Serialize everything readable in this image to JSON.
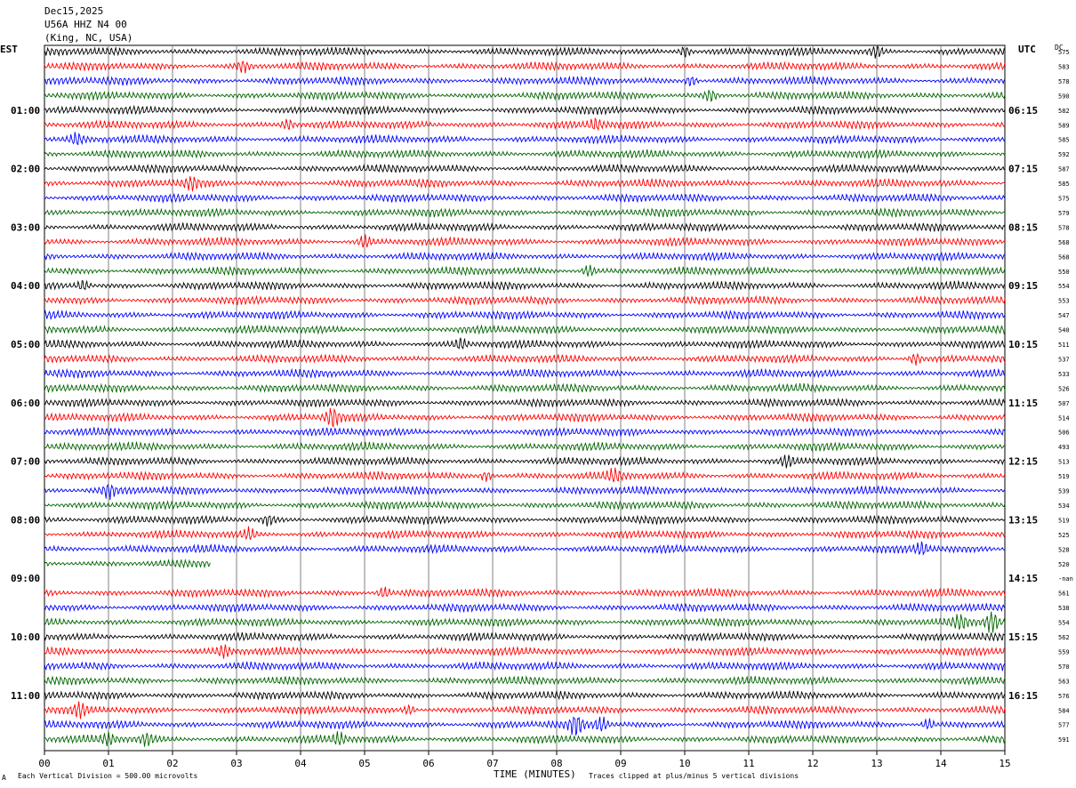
{
  "header": {
    "line1": "Dec15,2025",
    "line2": "U56A HHZ N4 00",
    "line3": "(King, NC, USA)"
  },
  "left_tz": "EST",
  "right_tz": "UTC",
  "dc_label": "DC",
  "footer": {
    "left": "Each Vertical Division =  500.00 microvolts",
    "center": "TIME (MINUTES)",
    "right": "Traces clipped at plus/minus 5 vertical divisions",
    "mark": "A"
  },
  "colors": {
    "black": "#000000",
    "red": "#ff0000",
    "blue": "#0000ff",
    "green": "#006400",
    "grid": "#808080"
  },
  "chart_data": {
    "type": "line",
    "title": "",
    "xlabel": "TIME (MINUTES)",
    "ylabel": "",
    "xlim": [
      0,
      15
    ],
    "x_ticks": [
      "00",
      "01",
      "02",
      "03",
      "04",
      "05",
      "06",
      "07",
      "08",
      "09",
      "10",
      "11",
      "12",
      "13",
      "14",
      "15"
    ],
    "trace_color_cycle": [
      "black",
      "red",
      "blue",
      "green"
    ],
    "left_time_labels": [
      {
        "row": 4,
        "label": "01:00"
      },
      {
        "row": 8,
        "label": "02:00"
      },
      {
        "row": 12,
        "label": "03:00"
      },
      {
        "row": 16,
        "label": "04:00"
      },
      {
        "row": 20,
        "label": "05:00"
      },
      {
        "row": 24,
        "label": "06:00"
      },
      {
        "row": 28,
        "label": "07:00"
      },
      {
        "row": 32,
        "label": "08:00"
      },
      {
        "row": 36,
        "label": "09:00"
      },
      {
        "row": 40,
        "label": "10:00"
      },
      {
        "row": 44,
        "label": "11:00"
      }
    ],
    "right_time_labels": [
      {
        "row": 4,
        "label": "06:15"
      },
      {
        "row": 8,
        "label": "07:15"
      },
      {
        "row": 12,
        "label": "08:15"
      },
      {
        "row": 16,
        "label": "09:15"
      },
      {
        "row": 20,
        "label": "10:15"
      },
      {
        "row": 24,
        "label": "11:15"
      },
      {
        "row": 28,
        "label": "12:15"
      },
      {
        "row": 32,
        "label": "13:15"
      },
      {
        "row": 36,
        "label": "14:15"
      },
      {
        "row": 40,
        "label": "15:15"
      },
      {
        "row": 44,
        "label": "16:15"
      }
    ],
    "dc_offsets": [
      "575",
      "583",
      "578",
      "590",
      "582",
      "589",
      "585",
      "592",
      "587",
      "585",
      "575",
      "579",
      "578",
      "568",
      "568",
      "550",
      "554",
      "553",
      "547",
      "540",
      "511",
      "537",
      "533",
      "526",
      "507",
      "514",
      "506",
      "493",
      "513",
      "519",
      "539",
      "534",
      "519",
      "525",
      "528",
      "520",
      "-nan",
      "561",
      "538",
      "554",
      "562",
      "559",
      "570",
      "563",
      "576",
      "584",
      "577",
      "591"
    ],
    "traces": [
      {
        "row": 0,
        "color": "black",
        "length": 15,
        "events": [
          {
            "x": 10.0,
            "amp": 1.6
          },
          {
            "x": 13.0,
            "amp": 1.4
          }
        ]
      },
      {
        "row": 1,
        "color": "red",
        "length": 15,
        "events": [
          {
            "x": 3.1,
            "amp": 1.4
          }
        ]
      },
      {
        "row": 2,
        "color": "blue",
        "length": 15,
        "events": [
          {
            "x": 10.1,
            "amp": 1.5
          }
        ]
      },
      {
        "row": 3,
        "color": "green",
        "length": 15,
        "events": [
          {
            "x": 10.4,
            "amp": 1.5
          }
        ]
      },
      {
        "row": 4,
        "color": "black",
        "length": 15,
        "events": []
      },
      {
        "row": 5,
        "color": "red",
        "length": 15,
        "events": [
          {
            "x": 3.8,
            "amp": 1.5
          },
          {
            "x": 8.6,
            "amp": 1.4
          }
        ]
      },
      {
        "row": 6,
        "color": "blue",
        "length": 15,
        "events": [
          {
            "x": 0.5,
            "amp": 1.4
          }
        ]
      },
      {
        "row": 7,
        "color": "green",
        "length": 15,
        "events": []
      },
      {
        "row": 8,
        "color": "black",
        "length": 15,
        "events": []
      },
      {
        "row": 9,
        "color": "red",
        "length": 15,
        "events": [
          {
            "x": 2.3,
            "amp": 1.4
          }
        ]
      },
      {
        "row": 10,
        "color": "blue",
        "length": 15,
        "events": []
      },
      {
        "row": 11,
        "color": "green",
        "length": 15,
        "events": []
      },
      {
        "row": 12,
        "color": "black",
        "length": 15,
        "events": []
      },
      {
        "row": 13,
        "color": "red",
        "length": 15,
        "events": [
          {
            "x": 5.0,
            "amp": 1.5
          }
        ]
      },
      {
        "row": 14,
        "color": "blue",
        "length": 15,
        "events": []
      },
      {
        "row": 15,
        "color": "green",
        "length": 15,
        "events": [
          {
            "x": 8.5,
            "amp": 1.5
          }
        ]
      },
      {
        "row": 16,
        "color": "black",
        "length": 15,
        "events": [
          {
            "x": 0.6,
            "amp": 1.4
          }
        ]
      },
      {
        "row": 17,
        "color": "red",
        "length": 15,
        "events": []
      },
      {
        "row": 18,
        "color": "blue",
        "length": 15,
        "events": []
      },
      {
        "row": 19,
        "color": "green",
        "length": 15,
        "events": []
      },
      {
        "row": 20,
        "color": "black",
        "length": 15,
        "events": [
          {
            "x": 6.5,
            "amp": 1.3
          }
        ]
      },
      {
        "row": 21,
        "color": "red",
        "length": 15,
        "events": [
          {
            "x": 13.6,
            "amp": 1.5
          }
        ]
      },
      {
        "row": 22,
        "color": "blue",
        "length": 15,
        "events": []
      },
      {
        "row": 23,
        "color": "green",
        "length": 15,
        "events": []
      },
      {
        "row": 24,
        "color": "black",
        "length": 15,
        "events": []
      },
      {
        "row": 25,
        "color": "red",
        "length": 15,
        "events": [
          {
            "x": 4.5,
            "amp": 2.6
          }
        ]
      },
      {
        "row": 26,
        "color": "blue",
        "length": 15,
        "events": []
      },
      {
        "row": 27,
        "color": "green",
        "length": 15,
        "events": []
      },
      {
        "row": 28,
        "color": "black",
        "length": 15,
        "events": [
          {
            "x": 11.6,
            "amp": 1.3
          }
        ]
      },
      {
        "row": 29,
        "color": "red",
        "length": 15,
        "events": [
          {
            "x": 6.9,
            "amp": 1.4
          },
          {
            "x": 8.9,
            "amp": 1.4
          }
        ]
      },
      {
        "row": 30,
        "color": "blue",
        "length": 15,
        "events": [
          {
            "x": 1.0,
            "amp": 1.6
          }
        ]
      },
      {
        "row": 31,
        "color": "green",
        "length": 15,
        "events": []
      },
      {
        "row": 32,
        "color": "black",
        "length": 15,
        "events": [
          {
            "x": 3.5,
            "amp": 1.3
          }
        ]
      },
      {
        "row": 33,
        "color": "red",
        "length": 15,
        "events": [
          {
            "x": 3.2,
            "amp": 1.3
          }
        ]
      },
      {
        "row": 34,
        "color": "blue",
        "length": 15,
        "events": [
          {
            "x": 13.7,
            "amp": 1.5
          }
        ]
      },
      {
        "row": 35,
        "color": "green",
        "length": 2.6,
        "events": []
      },
      {
        "row": 36,
        "color": "black",
        "length": 0,
        "events": []
      },
      {
        "row": 37,
        "color": "red",
        "length": 15,
        "events": [
          {
            "x": 5.3,
            "amp": 1.5
          }
        ]
      },
      {
        "row": 38,
        "color": "blue",
        "length": 15,
        "events": []
      },
      {
        "row": 39,
        "color": "green",
        "length": 15,
        "events": [
          {
            "x": 14.3,
            "amp": 1.6
          },
          {
            "x": 14.8,
            "amp": 3.2
          }
        ]
      },
      {
        "row": 40,
        "color": "black",
        "length": 15,
        "events": []
      },
      {
        "row": 41,
        "color": "red",
        "length": 15,
        "events": [
          {
            "x": 2.8,
            "amp": 1.5
          }
        ]
      },
      {
        "row": 42,
        "color": "blue",
        "length": 15,
        "events": []
      },
      {
        "row": 43,
        "color": "green",
        "length": 15,
        "events": []
      },
      {
        "row": 44,
        "color": "black",
        "length": 15,
        "events": []
      },
      {
        "row": 45,
        "color": "red",
        "length": 15,
        "events": [
          {
            "x": 0.55,
            "amp": 1.6
          },
          {
            "x": 5.7,
            "amp": 1.3
          }
        ]
      },
      {
        "row": 46,
        "color": "blue",
        "length": 15,
        "events": [
          {
            "x": 8.3,
            "amp": 2.8
          },
          {
            "x": 8.7,
            "amp": 1.8
          },
          {
            "x": 13.8,
            "amp": 1.4
          }
        ]
      },
      {
        "row": 47,
        "color": "green",
        "length": 15,
        "events": [
          {
            "x": 1.0,
            "amp": 1.4
          },
          {
            "x": 1.6,
            "amp": 1.5
          },
          {
            "x": 4.6,
            "amp": 1.4
          }
        ]
      }
    ]
  }
}
